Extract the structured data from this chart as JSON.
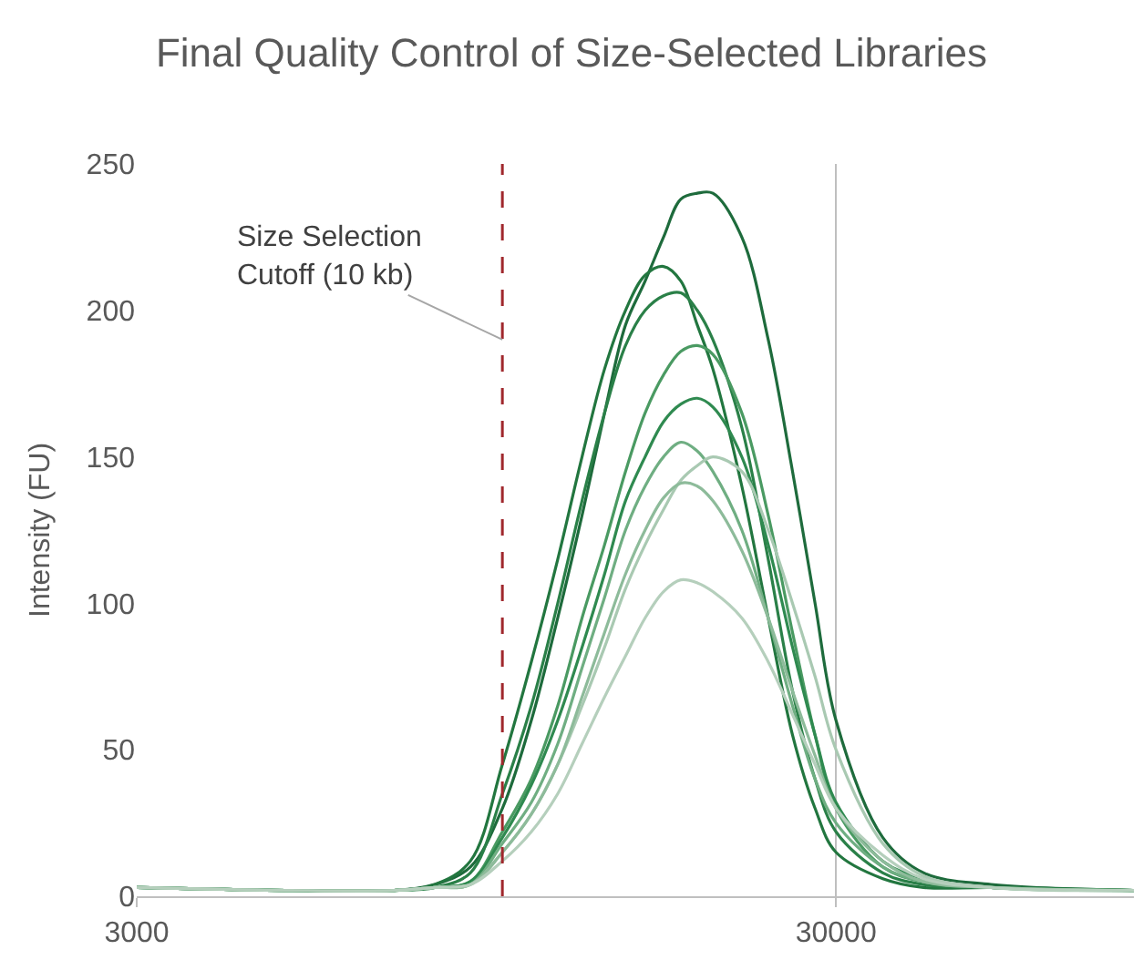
{
  "chart_data": {
    "type": "line",
    "title": "Final Quality Control of Size-Selected Libraries",
    "ylabel": "Intensity (FU)",
    "x": [
      3000,
      5000,
      7000,
      8000,
      9000,
      10000,
      11000,
      12000,
      13000,
      14000,
      15000,
      16000,
      17000,
      18000,
      19000,
      20000,
      22000,
      24000,
      26000,
      28000,
      30000,
      35000,
      40000,
      50000,
      80000
    ],
    "series": [
      {
        "color": "#1e6b3c",
        "values": [
          3,
          2,
          2,
          4,
          10,
          30,
          60,
          95,
          130,
          165,
          195,
          210,
          225,
          238,
          240,
          240,
          225,
          190,
          145,
          100,
          60,
          20,
          8,
          4,
          2
        ]
      },
      {
        "color": "#22763f",
        "values": [
          3,
          2,
          2,
          4,
          12,
          45,
          80,
          115,
          150,
          180,
          200,
          212,
          215,
          210,
          195,
          180,
          140,
          95,
          55,
          30,
          15,
          6,
          3,
          3,
          2
        ]
      },
      {
        "color": "#2a8048",
        "values": [
          3,
          2,
          2,
          3,
          8,
          35,
          65,
          100,
          135,
          165,
          188,
          200,
          205,
          206,
          200,
          190,
          160,
          115,
          70,
          40,
          22,
          8,
          4,
          3,
          2
        ]
      },
      {
        "color": "#4a9a62",
        "values": [
          3,
          2,
          2,
          3,
          5,
          22,
          40,
          65,
          95,
          120,
          145,
          165,
          178,
          186,
          188,
          185,
          165,
          130,
          90,
          55,
          30,
          10,
          5,
          3,
          2
        ]
      },
      {
        "color": "#2f8a50",
        "values": [
          3,
          2,
          2,
          3,
          5,
          20,
          38,
          60,
          85,
          110,
          135,
          150,
          162,
          168,
          170,
          167,
          150,
          120,
          85,
          55,
          32,
          12,
          6,
          3,
          2
        ]
      },
      {
        "color": "#6fae82",
        "values": [
          3,
          2,
          2,
          3,
          4,
          18,
          32,
          52,
          78,
          102,
          125,
          140,
          150,
          155,
          152,
          145,
          125,
          95,
          65,
          40,
          25,
          10,
          5,
          3,
          2
        ]
      },
      {
        "color": "#a9c9b2",
        "values": [
          3,
          2,
          2,
          3,
          4,
          15,
          28,
          45,
          65,
          85,
          105,
          120,
          132,
          142,
          147,
          150,
          145,
          125,
          100,
          75,
          50,
          18,
          7,
          3,
          2
        ]
      },
      {
        "color": "#8dbb9a",
        "values": [
          3,
          2,
          2,
          3,
          4,
          15,
          28,
          45,
          68,
          90,
          110,
          125,
          136,
          141,
          140,
          135,
          118,
          95,
          70,
          48,
          30,
          12,
          5,
          3,
          2
        ]
      },
      {
        "color": "#b5cfbc",
        "values": [
          3,
          2,
          2,
          3,
          4,
          12,
          22,
          35,
          52,
          68,
          82,
          95,
          104,
          108,
          107,
          104,
          95,
          80,
          62,
          45,
          30,
          14,
          6,
          3,
          2
        ]
      }
    ],
    "log": "x",
    "xlim": [
      3000,
      80000
    ],
    "xticks": [
      3000,
      30000
    ],
    "ylim": [
      0,
      250
    ],
    "yticks": [
      0,
      50,
      100,
      150,
      200,
      250
    ],
    "grid": "x",
    "marker": "none",
    "line_style": "solid",
    "ref_lines": [
      {
        "axis": "x",
        "value": 10000,
        "label": "Size Selection\nCutoff (10 kb)",
        "color": "#a0282d",
        "line_style": "dashed"
      }
    ]
  }
}
